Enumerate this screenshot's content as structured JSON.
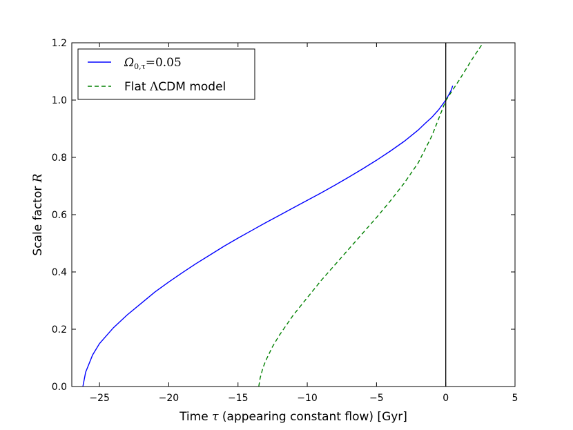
{
  "chart_data": {
    "type": "line",
    "xlabel": "Time τ (appearing constant flow) [Gyr]",
    "ylabel": "Scale factor R",
    "xlim": [
      -27,
      5
    ],
    "ylim": [
      0.0,
      1.2
    ],
    "xticks": [
      -25,
      -20,
      -15,
      -10,
      -5,
      0,
      5
    ],
    "xtick_labels": [
      "−25",
      "−20",
      "−15",
      "−10",
      "−5",
      "0",
      "5"
    ],
    "yticks": [
      0.0,
      0.2,
      0.4,
      0.6,
      0.8,
      1.0,
      1.2
    ],
    "ytick_labels": [
      "0.0",
      "0.2",
      "0.4",
      "0.6",
      "0.8",
      "1.0",
      "1.2"
    ],
    "grid": false,
    "legend_position": "top-left",
    "vertical_line": {
      "x": 0,
      "color": "#000000"
    },
    "series": [
      {
        "name": "Ω0,τ=0.05",
        "color": "#0000ff",
        "style": "solid",
        "x": [
          -26.2,
          -26.0,
          -25.5,
          -25.0,
          -24.0,
          -23.0,
          -22.0,
          -21.0,
          -20.0,
          -19.0,
          -18.0,
          -17.0,
          -16.0,
          -15.0,
          -14.0,
          -13.0,
          -12.0,
          -11.0,
          -10.0,
          -9.0,
          -8.0,
          -7.0,
          -6.0,
          -5.0,
          -4.0,
          -3.0,
          -2.0,
          -1.5,
          -1.0,
          -0.5,
          0.0,
          0.2,
          0.4,
          0.5
        ],
        "y": [
          0.0,
          0.05,
          0.11,
          0.15,
          0.205,
          0.25,
          0.29,
          0.33,
          0.365,
          0.398,
          0.43,
          0.46,
          0.49,
          0.518,
          0.545,
          0.572,
          0.598,
          0.624,
          0.65,
          0.676,
          0.703,
          0.731,
          0.76,
          0.79,
          0.822,
          0.856,
          0.895,
          0.918,
          0.94,
          0.967,
          1.0,
          1.017,
          1.035,
          1.05
        ]
      },
      {
        "name": "Flat ΛCDM model",
        "color": "#008000",
        "style": "dashed",
        "x": [
          -13.5,
          -13.4,
          -13.2,
          -13.0,
          -12.5,
          -12.0,
          -11.0,
          -10.0,
          -9.0,
          -8.0,
          -7.0,
          -6.0,
          -5.0,
          -4.0,
          -3.0,
          -2.0,
          -1.0,
          0.0,
          1.0,
          2.0,
          2.7
        ],
        "y": [
          0.0,
          0.03,
          0.065,
          0.09,
          0.14,
          0.18,
          0.25,
          0.31,
          0.37,
          0.425,
          0.48,
          0.535,
          0.59,
          0.648,
          0.71,
          0.78,
          0.875,
          0.998,
          1.072,
          1.15,
          1.2
        ]
      }
    ]
  },
  "legend": {
    "entry1": {
      "symbol": "Ω",
      "sub": "0,τ",
      "rest": "=0.05"
    },
    "entry2": {
      "prefix": "Flat ",
      "symbol": "Λ",
      "rest": "CDM model"
    }
  },
  "axes": {
    "xlabel": {
      "prefix": "Time ",
      "symbol": "τ",
      "rest": " (appearing constant flow) [Gyr]"
    },
    "ylabel": {
      "prefix": "Scale factor ",
      "symbol": "R"
    }
  }
}
